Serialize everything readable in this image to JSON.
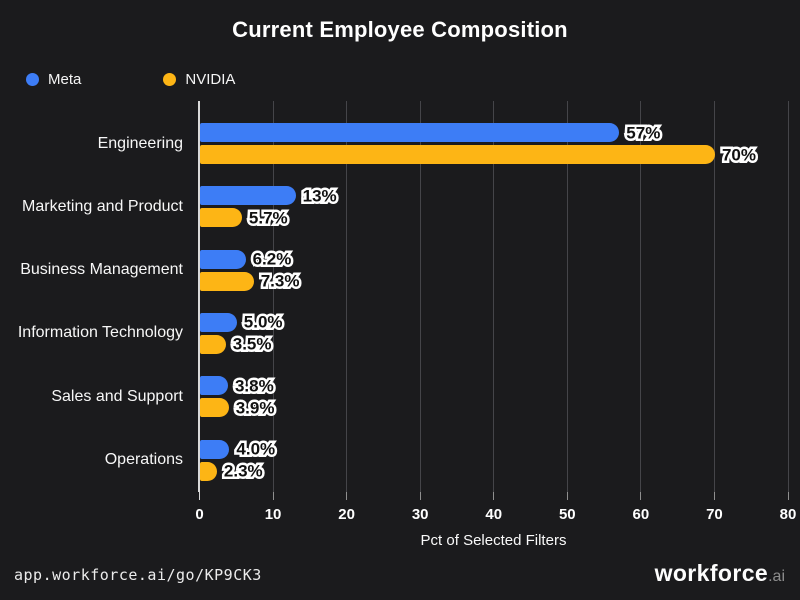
{
  "chart_data": {
    "type": "bar",
    "orientation": "horizontal",
    "title": "Current Employee Composition",
    "xlabel": "Pct of Selected Filters",
    "xlim": [
      0,
      80
    ],
    "xticks": [
      0,
      10,
      20,
      30,
      40,
      50,
      60,
      70,
      80
    ],
    "grid": true,
    "legend_position": "top-left",
    "categories": [
      "Engineering",
      "Marketing and Product",
      "Business Management",
      "Information Technology",
      "Sales and Support",
      "Operations"
    ],
    "series": [
      {
        "name": "Meta",
        "color": "#3d7df6",
        "values": [
          57,
          13,
          6.2,
          5.0,
          3.8,
          4.0
        ],
        "labels": [
          "57%",
          "13%",
          "6.2%",
          "5.0%",
          "3.8%",
          "4.0%"
        ]
      },
      {
        "name": "NVIDIA",
        "color": "#fdb515",
        "values": [
          70,
          5.7,
          7.3,
          3.5,
          3.9,
          2.3
        ],
        "labels": [
          "70%",
          "5.7%",
          "7.3%",
          "3.5%",
          "3.9%",
          "2.3%"
        ]
      }
    ]
  },
  "footer": {
    "share_link": "app.workforce.ai/go/KP9CK3",
    "brand": "workforce",
    "brand_suffix": ".ai"
  }
}
